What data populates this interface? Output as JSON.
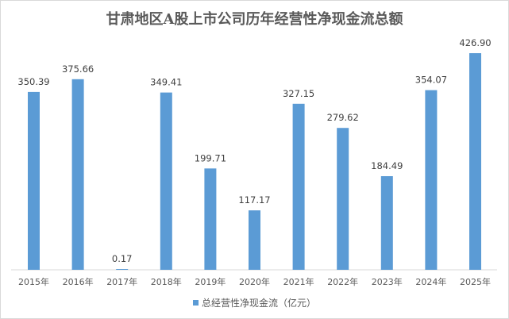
{
  "chart_data": {
    "type": "bar",
    "title": "甘肃地区A股上市公司历年经营性净现金流总额",
    "categories": [
      "2015年",
      "2016年",
      "2017年",
      "2018年",
      "2019年",
      "2020年",
      "2021年",
      "2022年",
      "2023年",
      "2024年",
      "2025年"
    ],
    "series": [
      {
        "name": "总经营性净现金流（亿元）",
        "values": [
          350.39,
          375.66,
          0.17,
          349.41,
          199.71,
          117.17,
          327.15,
          279.62,
          184.49,
          354.07,
          426.9
        ],
        "labels": [
          "350.39",
          "375.66",
          "0.17",
          "349.41",
          "199.71",
          "117.17",
          "327.15",
          "279.62",
          "184.49",
          "354.07",
          "426.90"
        ]
      }
    ],
    "ylim": [
      0,
      426.9
    ],
    "grid": false,
    "legend": "bottom",
    "bar_color": "#5b9bd5"
  }
}
